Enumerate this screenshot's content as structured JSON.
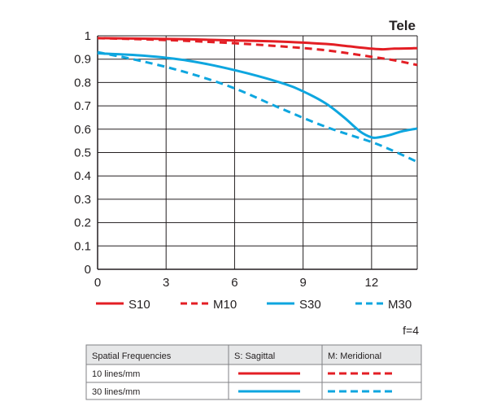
{
  "chart_data": {
    "type": "line",
    "title": "Tele",
    "aperture_label": "f=4",
    "xlabel": "",
    "ylabel": "",
    "xlim": [
      0,
      14
    ],
    "ylim": [
      0,
      1
    ],
    "grid": true,
    "x_ticks": [
      0,
      3,
      6,
      9,
      12
    ],
    "x_tick_labels": [
      "0",
      "3",
      "6",
      "9",
      "12"
    ],
    "y_ticks": [
      0,
      0.1,
      0.2,
      0.3,
      0.4,
      0.5,
      0.6,
      0.7,
      0.8,
      0.9,
      1
    ],
    "y_tick_labels": [
      "0",
      "0.1",
      "0.2",
      "0.3",
      "0.4",
      "0.5",
      "0.6",
      "0.7",
      "0.8",
      "0.9",
      "1"
    ],
    "series": [
      {
        "name": "S10",
        "color": "#e31e24",
        "dashed": false,
        "x": [
          0,
          2,
          4,
          6,
          8,
          10,
          11,
          12,
          12.5,
          13,
          14
        ],
        "y": [
          0.99,
          0.988,
          0.985,
          0.98,
          0.975,
          0.965,
          0.955,
          0.945,
          0.942,
          0.945,
          0.947
        ]
      },
      {
        "name": "M10",
        "color": "#e31e24",
        "dashed": true,
        "x": [
          0,
          2,
          4,
          6,
          8,
          10,
          12,
          13,
          14
        ],
        "y": [
          0.99,
          0.985,
          0.978,
          0.968,
          0.955,
          0.938,
          0.91,
          0.895,
          0.875
        ]
      },
      {
        "name": "S30",
        "color": "#0ea6df",
        "dashed": false,
        "x": [
          0,
          2,
          4,
          6,
          8,
          9,
          10,
          10.8,
          11.5,
          12,
          12.3,
          12.8,
          13.3,
          14
        ],
        "y": [
          0.925,
          0.915,
          0.893,
          0.853,
          0.8,
          0.762,
          0.71,
          0.65,
          0.59,
          0.565,
          0.565,
          0.575,
          0.59,
          0.603
        ]
      },
      {
        "name": "M30",
        "color": "#0ea6df",
        "dashed": true,
        "x": [
          0,
          2,
          4,
          6,
          8,
          10,
          12,
          13,
          14
        ],
        "y": [
          0.93,
          0.89,
          0.84,
          0.775,
          0.69,
          0.61,
          0.545,
          0.505,
          0.46
        ]
      }
    ]
  },
  "legend_table": {
    "headers": [
      "Spatial Frequencies",
      "S: Sagittal",
      "M: Meridional"
    ],
    "rows": [
      {
        "label": "10 lines/mm",
        "color": "#e31e24"
      },
      {
        "label": "30 lines/mm",
        "color": "#0ea6df"
      }
    ]
  }
}
